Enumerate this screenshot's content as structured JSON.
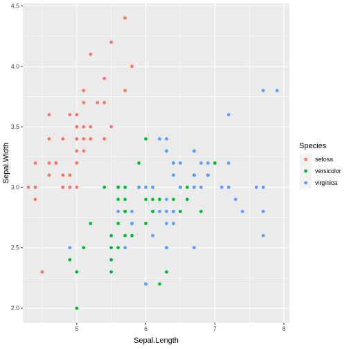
{
  "chart_data": {
    "type": "scatter",
    "title": "",
    "xlabel": "Sepal.Length",
    "ylabel": "Sepal.Width",
    "xlim": [
      4.22,
      8.08
    ],
    "ylim": [
      1.88,
      4.52
    ],
    "x_ticks": [
      5,
      6,
      7,
      8
    ],
    "y_ticks": [
      2.0,
      2.5,
      3.0,
      3.5,
      4.0,
      4.5
    ],
    "x_tick_labels": [
      "5",
      "6",
      "7",
      "8"
    ],
    "y_tick_labels": [
      "2.0",
      "2.5",
      "3.0",
      "3.5",
      "4.0",
      "4.5"
    ],
    "grid": true,
    "panel_background": "#ebebeb",
    "grid_color": "#ffffff",
    "legend": {
      "title": "Species",
      "position": "right"
    },
    "series": [
      {
        "name": "setosa",
        "color": "#f8766d",
        "points": [
          [
            5.1,
            3.5
          ],
          [
            4.9,
            3.0
          ],
          [
            4.7,
            3.2
          ],
          [
            4.6,
            3.1
          ],
          [
            5.0,
            3.6
          ],
          [
            5.4,
            3.9
          ],
          [
            4.6,
            3.4
          ],
          [
            5.0,
            3.4
          ],
          [
            4.4,
            2.9
          ],
          [
            4.9,
            3.1
          ],
          [
            5.4,
            3.7
          ],
          [
            4.8,
            3.4
          ],
          [
            4.8,
            3.0
          ],
          [
            4.3,
            3.0
          ],
          [
            5.8,
            4.0
          ],
          [
            5.7,
            4.4
          ],
          [
            5.4,
            3.9
          ],
          [
            5.1,
            3.5
          ],
          [
            5.7,
            3.8
          ],
          [
            5.1,
            3.8
          ],
          [
            5.4,
            3.4
          ],
          [
            5.1,
            3.7
          ],
          [
            4.6,
            3.6
          ],
          [
            5.1,
            3.3
          ],
          [
            4.8,
            3.4
          ],
          [
            5.0,
            3.0
          ],
          [
            5.0,
            3.4
          ],
          [
            5.2,
            3.5
          ],
          [
            5.2,
            3.4
          ],
          [
            4.7,
            3.2
          ],
          [
            4.8,
            3.1
          ],
          [
            5.4,
            3.4
          ],
          [
            5.2,
            4.1
          ],
          [
            5.5,
            4.2
          ],
          [
            4.9,
            3.1
          ],
          [
            5.0,
            3.2
          ],
          [
            5.5,
            3.5
          ],
          [
            4.9,
            3.6
          ],
          [
            4.4,
            3.0
          ],
          [
            5.1,
            3.4
          ],
          [
            5.0,
            3.5
          ],
          [
            4.5,
            2.3
          ],
          [
            4.4,
            3.2
          ],
          [
            5.0,
            3.5
          ],
          [
            5.1,
            3.8
          ],
          [
            4.8,
            3.0
          ],
          [
            5.1,
            3.8
          ],
          [
            4.6,
            3.2
          ],
          [
            5.3,
            3.7
          ],
          [
            5.0,
            3.3
          ]
        ]
      },
      {
        "name": "versicolor",
        "color": "#00ba38",
        "points": [
          [
            7.0,
            3.2
          ],
          [
            6.4,
            3.2
          ],
          [
            6.9,
            3.1
          ],
          [
            5.5,
            2.3
          ],
          [
            6.5,
            2.8
          ],
          [
            5.7,
            2.8
          ],
          [
            6.3,
            3.3
          ],
          [
            4.9,
            2.4
          ],
          [
            6.6,
            2.9
          ],
          [
            5.2,
            2.7
          ],
          [
            5.0,
            2.0
          ],
          [
            5.9,
            3.0
          ],
          [
            6.0,
            2.2
          ],
          [
            6.1,
            2.9
          ],
          [
            5.6,
            2.9
          ],
          [
            6.7,
            3.1
          ],
          [
            5.6,
            3.0
          ],
          [
            5.8,
            2.7
          ],
          [
            6.2,
            2.2
          ],
          [
            5.6,
            2.5
          ],
          [
            5.9,
            3.2
          ],
          [
            6.1,
            2.8
          ],
          [
            6.3,
            2.5
          ],
          [
            6.1,
            2.8
          ],
          [
            6.4,
            2.9
          ],
          [
            6.6,
            3.0
          ],
          [
            6.8,
            2.8
          ],
          [
            6.7,
            3.0
          ],
          [
            6.0,
            2.9
          ],
          [
            5.7,
            2.6
          ],
          [
            5.5,
            2.4
          ],
          [
            5.5,
            2.4
          ],
          [
            5.8,
            2.7
          ],
          [
            6.0,
            2.7
          ],
          [
            5.4,
            3.0
          ],
          [
            6.0,
            3.4
          ],
          [
            6.7,
            3.1
          ],
          [
            6.3,
            2.3
          ],
          [
            5.6,
            3.0
          ],
          [
            5.5,
            2.5
          ],
          [
            5.5,
            2.6
          ],
          [
            6.1,
            3.0
          ],
          [
            5.8,
            2.6
          ],
          [
            5.0,
            2.3
          ],
          [
            5.6,
            2.7
          ],
          [
            5.7,
            3.0
          ],
          [
            5.7,
            2.9
          ],
          [
            6.2,
            2.9
          ],
          [
            5.1,
            2.5
          ],
          [
            5.7,
            2.8
          ]
        ]
      },
      {
        "name": "virginica",
        "color": "#619cff",
        "points": [
          [
            6.3,
            3.3
          ],
          [
            5.8,
            2.7
          ],
          [
            7.1,
            3.0
          ],
          [
            6.3,
            2.9
          ],
          [
            6.5,
            3.0
          ],
          [
            7.6,
            3.0
          ],
          [
            4.9,
            2.5
          ],
          [
            7.3,
            2.9
          ],
          [
            6.7,
            2.5
          ],
          [
            7.2,
            3.6
          ],
          [
            6.5,
            3.2
          ],
          [
            6.4,
            2.7
          ],
          [
            6.8,
            3.0
          ],
          [
            5.7,
            2.5
          ],
          [
            5.8,
            2.8
          ],
          [
            6.4,
            3.2
          ],
          [
            6.5,
            3.0
          ],
          [
            7.7,
            3.8
          ],
          [
            7.7,
            2.6
          ],
          [
            6.0,
            2.2
          ],
          [
            6.9,
            3.2
          ],
          [
            5.6,
            2.8
          ],
          [
            7.7,
            2.8
          ],
          [
            6.3,
            2.7
          ],
          [
            6.7,
            3.3
          ],
          [
            7.2,
            3.2
          ],
          [
            6.2,
            2.8
          ],
          [
            6.1,
            3.0
          ],
          [
            6.4,
            2.8
          ],
          [
            7.2,
            3.0
          ],
          [
            7.4,
            2.8
          ],
          [
            7.9,
            3.8
          ],
          [
            6.4,
            2.8
          ],
          [
            6.3,
            2.8
          ],
          [
            6.1,
            2.6
          ],
          [
            7.7,
            3.0
          ],
          [
            6.3,
            3.4
          ],
          [
            6.4,
            3.1
          ],
          [
            6.0,
            3.0
          ],
          [
            6.9,
            3.1
          ],
          [
            6.7,
            3.1
          ],
          [
            6.9,
            3.1
          ],
          [
            5.8,
            2.7
          ],
          [
            6.8,
            3.2
          ],
          [
            6.7,
            3.3
          ],
          [
            6.7,
            3.0
          ],
          [
            6.3,
            2.5
          ],
          [
            6.5,
            3.0
          ],
          [
            6.2,
            3.4
          ],
          [
            5.9,
            3.0
          ]
        ]
      }
    ]
  }
}
